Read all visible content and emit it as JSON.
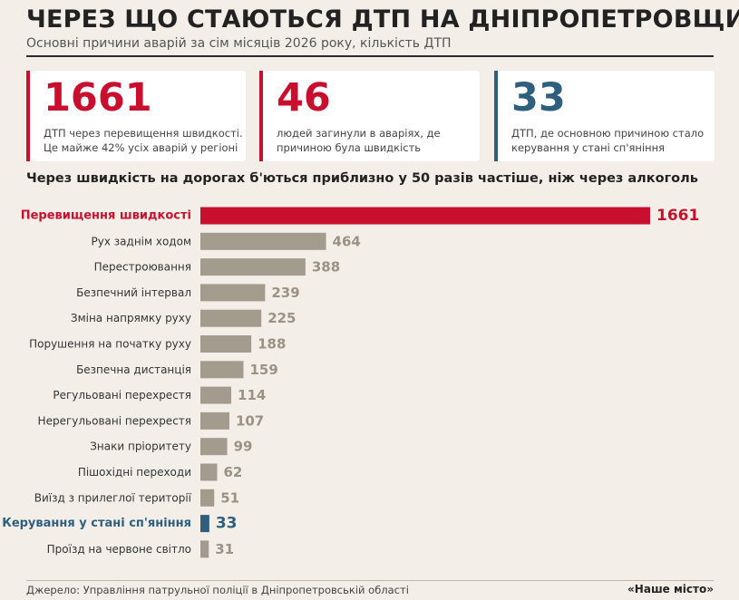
{
  "header": {
    "title": "ЧЕРЕЗ ЩО СТАЮТЬСЯ ДТП НА ДНІПРОПЕТРОВЩИНІ",
    "subtitle": "Основні причини аварій за сім місяців 2026 року, кількість ДТП"
  },
  "cards": [
    {
      "number": "1661",
      "text": "ДТП через перевищення швидкості. Це майже 42% усіх аварій у регіоні",
      "color": "#c8102e"
    },
    {
      "number": "46",
      "text": "людей загинули в аваріях, де причиною була швидкість",
      "color": "#c8102e"
    },
    {
      "number": "33",
      "text": "ДТП, де основною причиною стало керування у стані сп'яніння",
      "color": "#2e5f7f"
    }
  ],
  "headline": "Через швидкість на дорогах б'ються приблизно у 50 разів частіше, ніж через алкоголь",
  "colors": {
    "highlight_red": "#c8102e",
    "highlight_blue": "#2e5f7f",
    "default_bar": "#a39b8e",
    "default_value": "#9a9284"
  },
  "chart_data": {
    "type": "bar",
    "orientation": "horizontal",
    "title": "",
    "xlabel": "",
    "ylabel": "",
    "grid": false,
    "xlim": [
      0,
      1661
    ],
    "categories": [
      "Перевищення швидкості",
      "Рух заднім ходом",
      "Перестроювання",
      "Безпечний інтервал",
      "Зміна напрямку руху",
      "Порушення на початку руху",
      "Безпечна дистанція",
      "Регульовані перехрестя",
      "Нерегульовані перехрестя",
      "Знаки пріоритету",
      "Пішохідні переходи",
      "Виїзд з прилеглої території",
      "Керування у стані сп'яніння",
      "Проїзд на червоне світло"
    ],
    "values": [
      1661,
      464,
      388,
      239,
      225,
      188,
      159,
      114,
      107,
      99,
      62,
      51,
      33,
      31
    ],
    "highlights": {
      "0": "highlight_red",
      "12": "highlight_blue"
    }
  },
  "footer": {
    "source": "Джерело: Управління патрульної поліції в Дніпропетровській області",
    "brand": "«Наше місто»"
  }
}
